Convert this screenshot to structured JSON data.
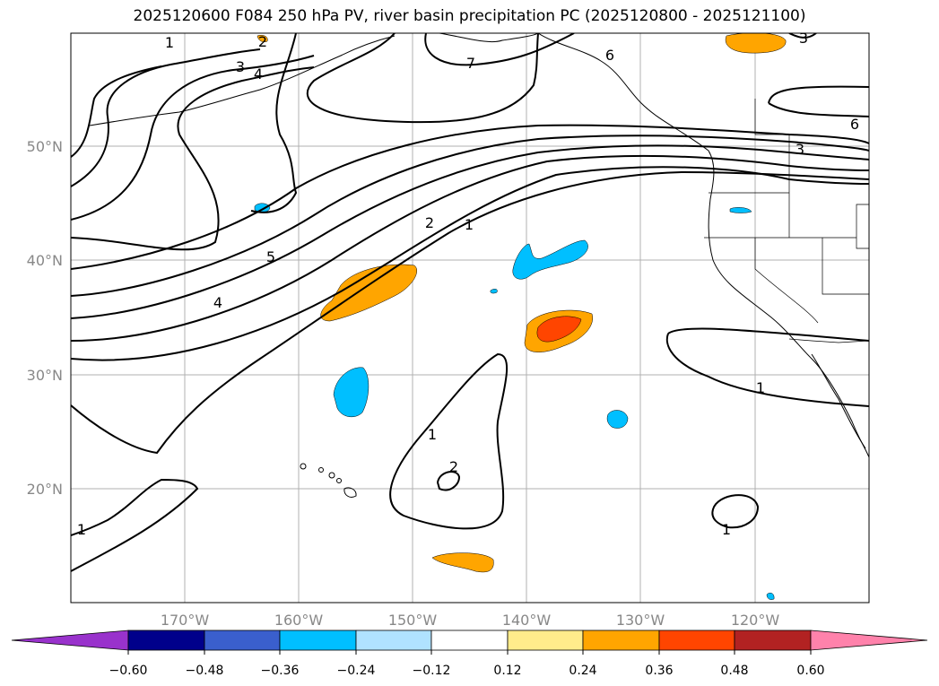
{
  "title": "2025120600 F084 250 hPa PV, river basin precipitation PC (2025120800 - 2025121100)",
  "map": {
    "lon_ticks": [
      "170°W",
      "160°W",
      "150°W",
      "140°W",
      "130°W",
      "120°W"
    ],
    "lat_ticks": [
      "50°N",
      "40°N",
      "30°N",
      "20°N"
    ],
    "pv_contour_labels": [
      "1",
      "2",
      "3",
      "4",
      "5",
      "6",
      "7"
    ],
    "colors": {
      "orange": "#ffa500",
      "red_orange": "#ff4500",
      "deep_sky_blue": "#00bfff"
    }
  },
  "colorbar": {
    "tick_labels": [
      "−0.60",
      "−0.48",
      "−0.36",
      "−0.24",
      "−0.12",
      "0.12",
      "0.24",
      "0.36",
      "0.48",
      "0.60"
    ],
    "colors": [
      "#9932cc",
      "#00008b",
      "#3a5fcd",
      "#00bfff",
      "#b0e2ff",
      "#ffffff",
      "#ffec8b",
      "#ffa500",
      "#ff4500",
      "#b22222",
      "#ff82ab"
    ]
  }
}
